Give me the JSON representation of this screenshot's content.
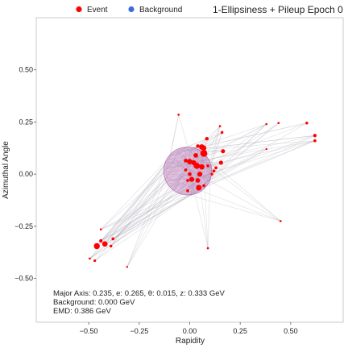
{
  "chart_data": {
    "type": "scatter",
    "title": "1-Ellipsiness + Pileup Epoch 0",
    "xlabel": "Rapidity",
    "ylabel": "Azimuthal Angle",
    "xlim": [
      -0.76,
      0.76
    ],
    "ylim": [
      -0.71,
      0.75
    ],
    "xticks": [
      -0.5,
      -0.25,
      0.0,
      0.25,
      0.5
    ],
    "xtick_labels": [
      "−0.50",
      "−0.25",
      "0.00",
      "0.25",
      "0.50"
    ],
    "yticks": [
      -0.5,
      -0.25,
      0.0,
      0.25,
      0.5
    ],
    "ytick_labels": [
      "−0.50",
      "−0.25",
      "0.00",
      "0.25",
      "0.50"
    ],
    "grid": false,
    "legend": {
      "placement": "top",
      "entries": [
        {
          "label": "Event",
          "color": "#ff0000"
        },
        {
          "label": "Background",
          "color": "#4169e1"
        }
      ]
    },
    "ellipse": {
      "center": [
        -0.01,
        0.015
      ],
      "semi_axes": [
        0.118,
        0.115
      ],
      "angle_deg": 0.86,
      "fill": "#c070b8",
      "stroke": "#9a4a9a"
    },
    "event_color": "#ff0000",
    "line_color": "#a0a0b0",
    "series": [
      {
        "name": "Event",
        "points": [
          {
            "x": 0.06,
            "y": 0.13,
            "pt": 2.2
          },
          {
            "x": 0.07,
            "y": 0.1,
            "pt": 3.0
          },
          {
            "x": 0.07,
            "y": 0.125,
            "pt": 2.0
          },
          {
            "x": 0.04,
            "y": 0.135,
            "pt": 1.2
          },
          {
            "x": 0.03,
            "y": 0.09,
            "pt": 1.8
          },
          {
            "x": 0.085,
            "y": 0.17,
            "pt": 1.3
          },
          {
            "x": 0.15,
            "y": 0.23,
            "pt": 0.6
          },
          {
            "x": 0.16,
            "y": 0.2,
            "pt": 0.9
          },
          {
            "x": 0.165,
            "y": 0.11,
            "pt": 1.6
          },
          {
            "x": 0.155,
            "y": 0.055,
            "pt": 1.6
          },
          {
            "x": 0.13,
            "y": 0.03,
            "pt": 1.0
          },
          {
            "x": 0.12,
            "y": 0.015,
            "pt": 1.0
          },
          {
            "x": -0.055,
            "y": 0.285,
            "pt": 0.6
          },
          {
            "x": -0.02,
            "y": 0.065,
            "pt": 1.4
          },
          {
            "x": 0.0,
            "y": 0.06,
            "pt": 2.2
          },
          {
            "x": 0.02,
            "y": 0.055,
            "pt": 2.0
          },
          {
            "x": 0.035,
            "y": 0.04,
            "pt": 2.6
          },
          {
            "x": 0.06,
            "y": 0.035,
            "pt": 2.2
          },
          {
            "x": 0.09,
            "y": 0.04,
            "pt": 1.0
          },
          {
            "x": 0.05,
            "y": 0.0,
            "pt": 2.0
          },
          {
            "x": 0.04,
            "y": -0.03,
            "pt": 1.8
          },
          {
            "x": 0.01,
            "y": -0.025,
            "pt": 2.0
          },
          {
            "x": 0.0,
            "y": 0.0,
            "pt": 1.4
          },
          {
            "x": -0.02,
            "y": 0.02,
            "pt": 1.0
          },
          {
            "x": -0.01,
            "y": -0.03,
            "pt": 1.0
          },
          {
            "x": -0.01,
            "y": -0.08,
            "pt": 1.0
          },
          {
            "x": 0.045,
            "y": -0.065,
            "pt": 2.3
          },
          {
            "x": 0.07,
            "y": -0.055,
            "pt": 1.0
          },
          {
            "x": 0.11,
            "y": 0.0,
            "pt": 0.9
          },
          {
            "x": 0.09,
            "y": -0.355,
            "pt": 0.6
          },
          {
            "x": 0.45,
            "y": -0.225,
            "pt": 0.6
          },
          {
            "x": 0.38,
            "y": 0.24,
            "pt": 0.6
          },
          {
            "x": 0.44,
            "y": 0.245,
            "pt": 0.6
          },
          {
            "x": 0.58,
            "y": 0.245,
            "pt": 0.9
          },
          {
            "x": 0.62,
            "y": 0.185,
            "pt": 1.2
          },
          {
            "x": 0.62,
            "y": 0.16,
            "pt": 1.0
          },
          {
            "x": 0.38,
            "y": 0.12,
            "pt": 0.5
          },
          {
            "x": -0.46,
            "y": -0.345,
            "pt": 2.5
          },
          {
            "x": -0.42,
            "y": -0.335,
            "pt": 2.2
          },
          {
            "x": -0.44,
            "y": -0.32,
            "pt": 1.2
          },
          {
            "x": -0.38,
            "y": -0.31,
            "pt": 1.0
          },
          {
            "x": -0.39,
            "y": -0.345,
            "pt": 0.9
          },
          {
            "x": -0.44,
            "y": -0.265,
            "pt": 0.6
          },
          {
            "x": -0.495,
            "y": -0.405,
            "pt": 0.6
          },
          {
            "x": -0.47,
            "y": -0.415,
            "pt": 0.8
          },
          {
            "x": -0.31,
            "y": -0.445,
            "pt": 0.5
          }
        ]
      }
    ]
  },
  "annotation": {
    "line1": "Major Axis: 0.235, e: 0.265, θ: 0.015, z: 0.333 GeV",
    "line2": "Background: 0.000 GeV",
    "line3": "EMD: 0.386 GeV"
  }
}
